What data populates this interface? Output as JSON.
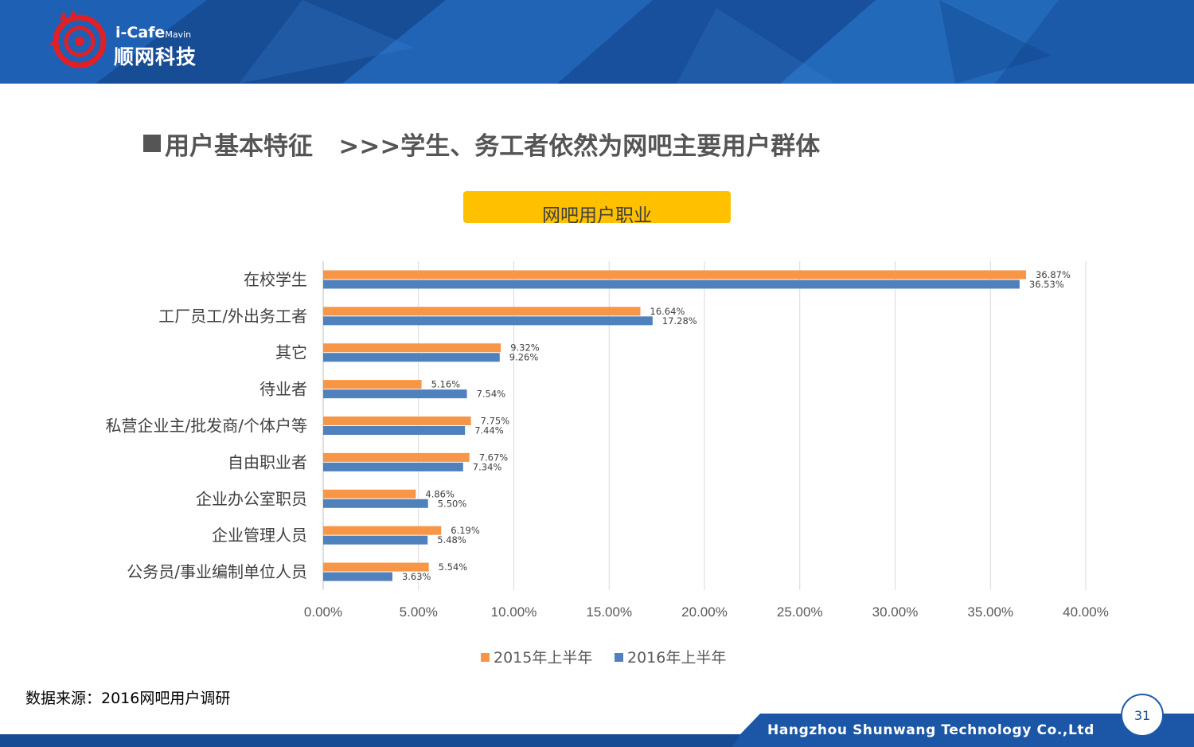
{
  "header": {
    "logo_text_en": "i-Cafe",
    "logo_text_en_sub": "Mavin",
    "logo_text_cn": "顺网科技"
  },
  "title": "用户基本特征   >>>学生、务工者依然为网吧主要用户群体",
  "source_note": "数据来源：2016网吧用户调研",
  "footer": {
    "company": "Hangzhou Shunwang Technology Co.,Ltd",
    "page_number": "31"
  },
  "colors": {
    "series_2015": "#F79646",
    "series_2016": "#4F81BD",
    "title_box": "#FFC000",
    "header_blue": "#1B57A6"
  },
  "chart_data": {
    "type": "bar",
    "orientation": "horizontal",
    "title": "网吧用户职业",
    "categories": [
      "在校学生",
      "工厂员工/外出务工者",
      "其它",
      "待业者",
      "私营企业主/批发商/个体户等",
      "自由职业者",
      "企业办公室职员",
      "企业管理人员",
      "公务员/事业编制单位人员"
    ],
    "series": [
      {
        "name": "2015年上半年",
        "values": [
          36.87,
          16.64,
          9.32,
          5.16,
          7.75,
          7.67,
          4.86,
          6.19,
          5.54
        ],
        "labels": [
          "36.87%",
          "16.64%",
          "9.32%",
          "5.16%",
          "7.75%",
          "7.67%",
          "4.86%",
          "6.19%",
          "5.54%"
        ]
      },
      {
        "name": "2016年上半年",
        "values": [
          36.53,
          17.28,
          9.26,
          7.54,
          7.44,
          7.34,
          5.5,
          5.48,
          3.63
        ],
        "labels": [
          "36.53%",
          "17.28%",
          "9.26%",
          "7.54%",
          "7.44%",
          "7.34%",
          "5.50%",
          "5.48%",
          "3.63%"
        ]
      }
    ],
    "xlim": [
      0,
      40
    ],
    "xticks": [
      "0.00%",
      "5.00%",
      "10.00%",
      "15.00%",
      "20.00%",
      "25.00%",
      "30.00%",
      "35.00%",
      "40.00%"
    ],
    "grid": true,
    "legend": "bottom"
  }
}
